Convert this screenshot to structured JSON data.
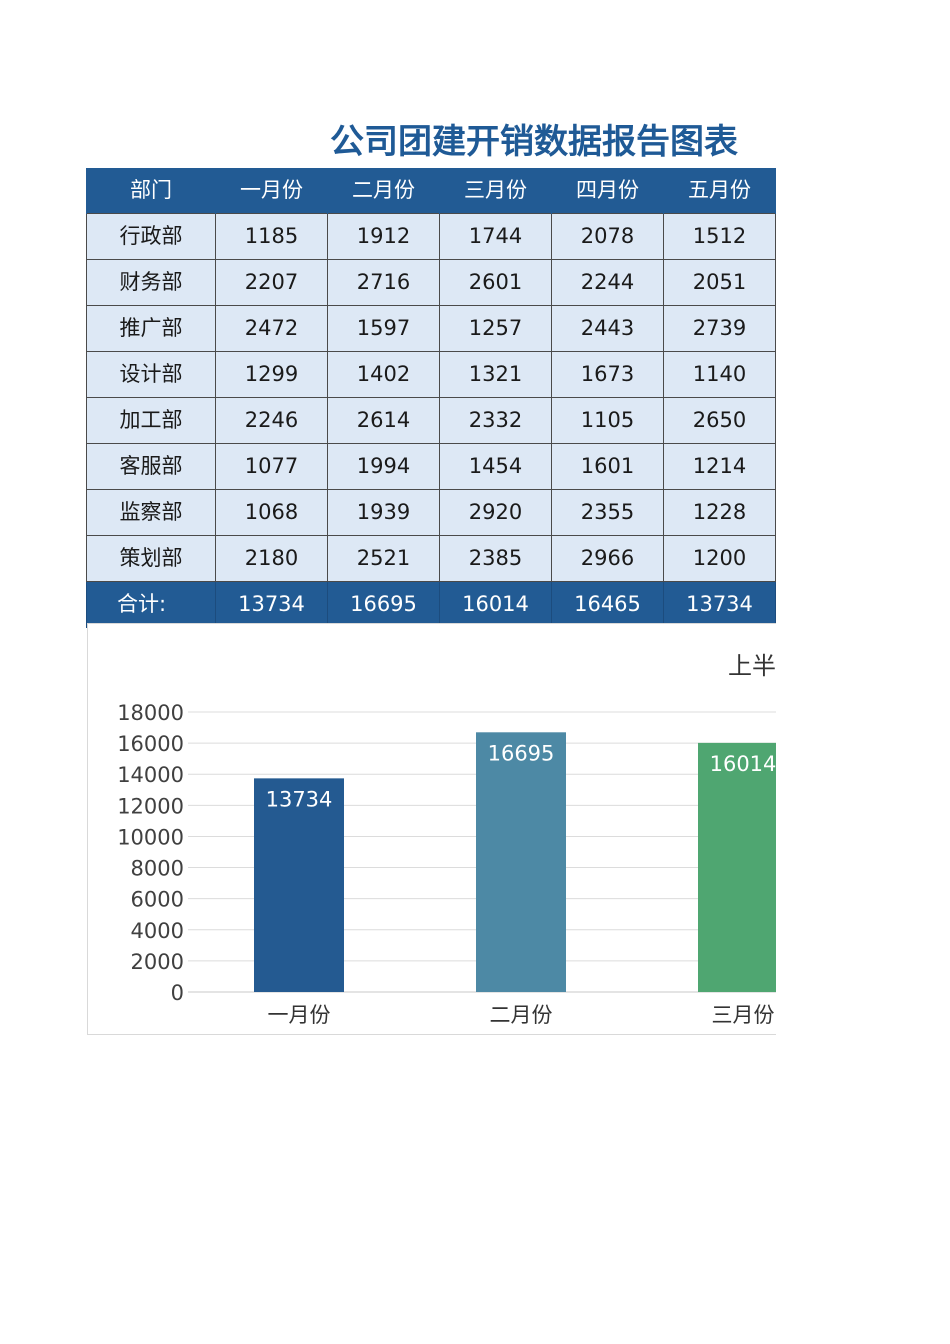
{
  "title": "公司团建开销数据报告图表",
  "table": {
    "headers": [
      "部门",
      "一月份",
      "二月份",
      "三月份",
      "四月份",
      "五月份"
    ],
    "rows": [
      [
        "行政部",
        "1185",
        "1912",
        "1744",
        "2078",
        "1512"
      ],
      [
        "财务部",
        "2207",
        "2716",
        "2601",
        "2244",
        "2051"
      ],
      [
        "推广部",
        "2472",
        "1597",
        "1257",
        "2443",
        "2739"
      ],
      [
        "设计部",
        "1299",
        "1402",
        "1321",
        "1673",
        "1140"
      ],
      [
        "加工部",
        "2246",
        "2614",
        "2332",
        "1105",
        "2650"
      ],
      [
        "客服部",
        "1077",
        "1994",
        "1454",
        "1601",
        "1214"
      ],
      [
        "监察部",
        "1068",
        "1939",
        "2920",
        "2355",
        "1228"
      ],
      [
        "策划部",
        "2180",
        "2521",
        "2385",
        "2966",
        "1200"
      ]
    ],
    "totals": [
      "合计:",
      "13734",
      "16695",
      "16014",
      "16465",
      "13734"
    ]
  },
  "chart_data": {
    "type": "bar",
    "title": "上半",
    "categories": [
      "一月份",
      "二月份",
      "三月份"
    ],
    "values": [
      13734,
      16695,
      16014
    ],
    "colors": [
      "#245a91",
      "#4d89a5",
      "#4fa671"
    ],
    "yticks": [
      0,
      2000,
      4000,
      6000,
      8000,
      10000,
      12000,
      14000,
      16000,
      18000
    ],
    "ylim": [
      0,
      18000
    ],
    "grid": true,
    "xlabel": "",
    "ylabel": ""
  }
}
